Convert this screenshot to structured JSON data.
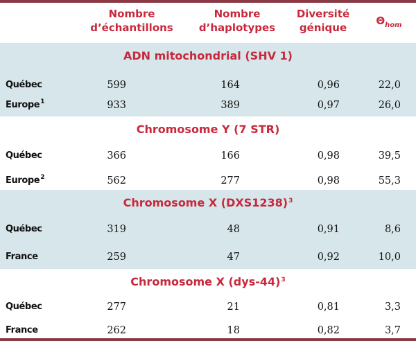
{
  "headers": {
    "samples": [
      "Nombre",
      "d’échantillons"
    ],
    "haplotypes": [
      "Nombre",
      "d’haplotypes"
    ],
    "diversity": [
      "Diversité",
      "génique"
    ],
    "theta_symbol": "Θ",
    "theta_sub": "hom"
  },
  "sections": [
    {
      "title": "ADN mitochondrial (SHV 1)",
      "title_sup": "",
      "rows": [
        {
          "label": "Québec",
          "sup": "",
          "samples": "599",
          "haplotypes": "164",
          "diversity": "0,96",
          "theta": "22,0"
        },
        {
          "label": "Europe",
          "sup": "1",
          "samples": "933",
          "haplotypes": "389",
          "diversity": "0,97",
          "theta": "26,0"
        }
      ]
    },
    {
      "title": "Chromosome Y (7 STR)",
      "title_sup": "",
      "rows": [
        {
          "label": "Québec",
          "sup": "",
          "samples": "366",
          "haplotypes": "166",
          "diversity": "0,98",
          "theta": "39,5"
        },
        {
          "label": "Europe",
          "sup": "2",
          "samples": "562",
          "haplotypes": "277",
          "diversity": "0,98",
          "theta": "55,3"
        }
      ]
    },
    {
      "title": "Chromosome X (DXS1238)",
      "title_sup": "3",
      "rows": [
        {
          "label": "Québec",
          "sup": "",
          "samples": "319",
          "haplotypes": "48",
          "diversity": "0,91",
          "theta": "8,6"
        },
        {
          "label": "France",
          "sup": "",
          "samples": "259",
          "haplotypes": "47",
          "diversity": "0,92",
          "theta": "10,0"
        }
      ]
    },
    {
      "title": "Chromosome X (dys-44)",
      "title_sup": "3",
      "rows": [
        {
          "label": "Québec",
          "sup": "",
          "samples": "277",
          "haplotypes": "21",
          "diversity": "0,81",
          "theta": "3,3"
        },
        {
          "label": "France",
          "sup": "",
          "samples": "262",
          "haplotypes": "18",
          "diversity": "0,82",
          "theta": "3,7"
        }
      ]
    }
  ],
  "colors": {
    "accent": "#c8283c",
    "band": "#d6e6ea",
    "border": "#8b3a45"
  }
}
